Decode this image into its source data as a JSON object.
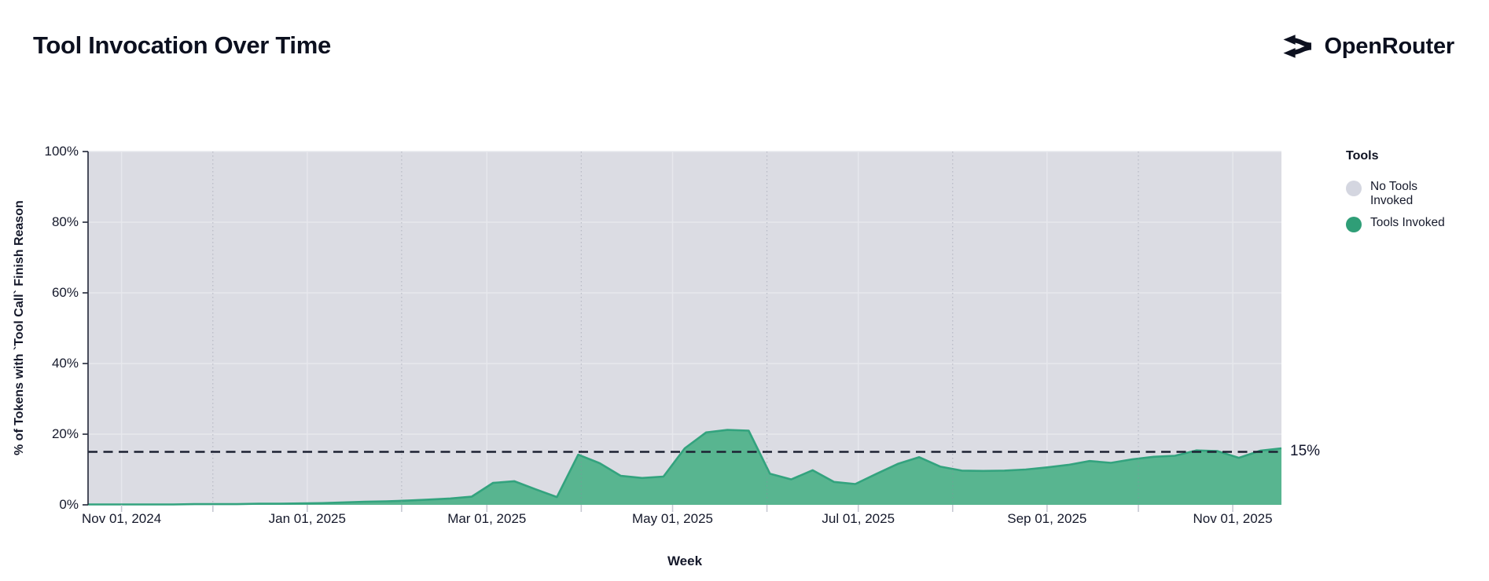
{
  "header": {
    "title": "Tool Invocation Over Time",
    "brand": "OpenRouter"
  },
  "legend": {
    "title": "Tools",
    "items": [
      {
        "label": "No Tools Invoked",
        "color": "#d4d6e0"
      },
      {
        "label": "Tools Invoked",
        "color": "#2f9e77"
      }
    ]
  },
  "reference_line": {
    "value": 15,
    "label": "15%",
    "style": "dashed"
  },
  "y_axis": {
    "title": "% of Tokens with `Tool Call` Finish Reason",
    "tick_values": [
      0,
      20,
      40,
      60,
      80,
      100
    ],
    "tick_suffix": "%"
  },
  "x_axis": {
    "title": "Week",
    "ticks": [
      {
        "date": "2024-11-01",
        "label": "Nov 01, 2024"
      },
      {
        "date": "2024-12-01",
        "label": ""
      },
      {
        "date": "2025-01-01",
        "label": "Jan 01, 2025"
      },
      {
        "date": "2025-02-01",
        "label": ""
      },
      {
        "date": "2025-03-01",
        "label": "Mar 01, 2025"
      },
      {
        "date": "2025-04-01",
        "label": ""
      },
      {
        "date": "2025-05-01",
        "label": "May 01, 2025"
      },
      {
        "date": "2025-06-01",
        "label": ""
      },
      {
        "date": "2025-07-01",
        "label": "Jul 01, 2025"
      },
      {
        "date": "2025-08-01",
        "label": ""
      },
      {
        "date": "2025-09-01",
        "label": "Sep 01, 2025"
      },
      {
        "date": "2025-10-01",
        "label": ""
      },
      {
        "date": "2025-11-01",
        "label": "Nov 01, 2025"
      }
    ]
  },
  "chart_data": {
    "type": "area",
    "stacked": true,
    "title": "Tool Invocation Over Time",
    "xlabel": "Week",
    "ylabel": "% of Tokens with `Tool Call` Finish Reason",
    "ylim": [
      0,
      100
    ],
    "grid": true,
    "legend_position": "right",
    "x_unit": "week_start_date",
    "x": [
      "2024-10-21",
      "2024-10-28",
      "2024-11-04",
      "2024-11-11",
      "2024-11-18",
      "2024-11-25",
      "2024-12-02",
      "2024-12-09",
      "2024-12-16",
      "2024-12-23",
      "2024-12-30",
      "2025-01-06",
      "2025-01-13",
      "2025-01-20",
      "2025-01-27",
      "2025-02-03",
      "2025-02-10",
      "2025-02-17",
      "2025-02-24",
      "2025-03-03",
      "2025-03-10",
      "2025-03-17",
      "2025-03-24",
      "2025-03-31",
      "2025-04-07",
      "2025-04-14",
      "2025-04-21",
      "2025-04-28",
      "2025-05-05",
      "2025-05-12",
      "2025-05-19",
      "2025-05-26",
      "2025-06-02",
      "2025-06-09",
      "2025-06-16",
      "2025-06-23",
      "2025-06-30",
      "2025-07-07",
      "2025-07-14",
      "2025-07-21",
      "2025-07-28",
      "2025-08-04",
      "2025-08-11",
      "2025-08-18",
      "2025-08-25",
      "2025-09-01",
      "2025-09-08",
      "2025-09-15",
      "2025-09-22",
      "2025-09-29",
      "2025-10-06",
      "2025-10-13",
      "2025-10-20",
      "2025-10-27",
      "2025-11-03",
      "2025-11-10",
      "2025-11-17"
    ],
    "series": [
      {
        "name": "Tools Invoked",
        "color": "#2f9e77",
        "values": [
          0.1,
          0.1,
          0.1,
          0.1,
          0.1,
          0.2,
          0.2,
          0.2,
          0.3,
          0.3,
          0.4,
          0.5,
          0.7,
          0.9,
          1.0,
          1.2,
          1.5,
          1.8,
          2.3,
          6.2,
          6.7,
          4.4,
          2.2,
          14.2,
          11.8,
          8.2,
          7.6,
          8.0,
          16.0,
          20.5,
          21.2,
          21.0,
          8.8,
          7.2,
          9.8,
          6.5,
          5.9,
          8.8,
          11.6,
          13.5,
          10.8,
          9.7,
          9.6,
          9.7,
          10.0,
          10.6,
          11.3,
          12.4,
          11.9,
          12.9,
          13.6,
          13.9,
          15.4,
          15.2,
          13.3,
          15.3,
          16.0
        ]
      },
      {
        "name": "No Tools Invoked",
        "color": "#d4d6e0",
        "values": [
          99.9,
          99.9,
          99.9,
          99.9,
          99.9,
          99.8,
          99.8,
          99.8,
          99.7,
          99.7,
          99.6,
          99.5,
          99.3,
          99.1,
          99.0,
          98.8,
          98.5,
          98.2,
          97.7,
          93.8,
          93.3,
          95.6,
          97.8,
          85.8,
          88.2,
          91.8,
          92.4,
          92.0,
          84.0,
          79.5,
          78.8,
          79.0,
          91.2,
          92.8,
          90.2,
          93.5,
          94.1,
          91.2,
          88.4,
          86.5,
          89.2,
          90.3,
          90.4,
          90.3,
          90.0,
          89.4,
          88.7,
          87.6,
          88.1,
          87.1,
          86.4,
          86.1,
          84.6,
          84.8,
          86.7,
          84.7,
          84.0
        ]
      }
    ],
    "annotations": [
      {
        "type": "hline",
        "y": 15,
        "label": "15%",
        "line_style": "dashed"
      }
    ]
  },
  "colors": {
    "plot_bg": "#dbdce3",
    "grid": "#e7e8ed",
    "minor_grid": "#8a8e9e",
    "area_fill": "#58b590",
    "area_stroke": "#33a37e",
    "dashed_line": "#1c2132",
    "axis": "#2d3142",
    "x_tick_mark": "#c7c9d3"
  }
}
